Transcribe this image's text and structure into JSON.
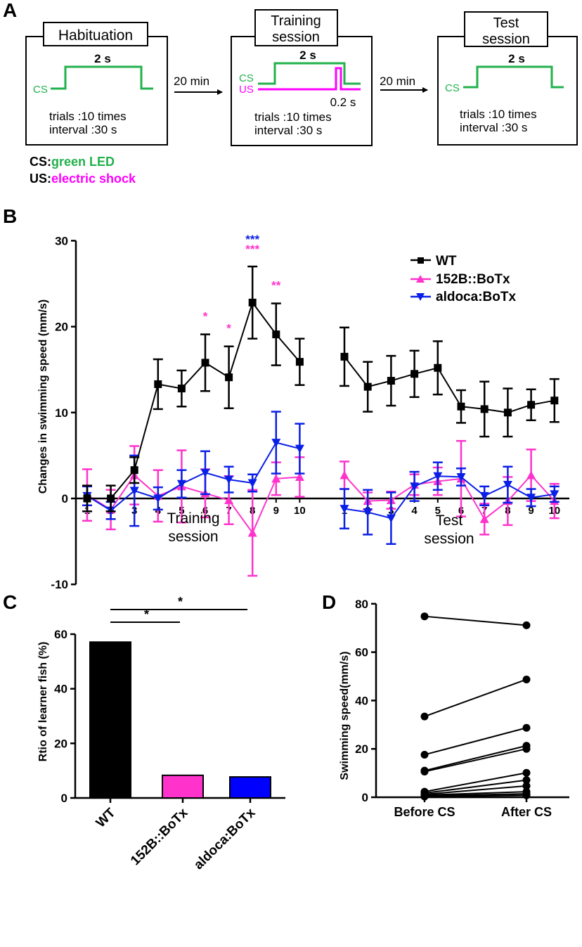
{
  "colors": {
    "wt": "#000000",
    "b152": "#ff33cc",
    "aldoca": "#0a1fe6",
    "green": "#22b14c",
    "magenta": "#ff00ff",
    "bar_wt": "#000000",
    "bar_152": "#ff33cc",
    "bar_aldoca": "#0000ff"
  },
  "panel_a": {
    "label": "A",
    "boxes": [
      {
        "title": "Habituation",
        "wave_top": "2 s",
        "cs": "CS",
        "trials": "trials :10 times",
        "interval": "interval :30 s"
      },
      {
        "title_line1": "Training",
        "title_line2": "session",
        "wave_top": "2 s",
        "cs": "CS",
        "us": "US",
        "us_dur": "0.2 s",
        "trials": "trials :10 times",
        "interval": "interval :30 s"
      },
      {
        "title_line1": "Test",
        "title_line2": "session",
        "wave_top": "2 s",
        "cs": "CS",
        "trials": "trials :10 times",
        "interval": "interval :30 s"
      }
    ],
    "arrows": [
      "20 min",
      "20 min"
    ],
    "legend": {
      "cs_key": "CS:",
      "cs_val": "green LED",
      "us_key": "US:",
      "us_val": "electric shock"
    }
  },
  "chart_data": [
    {
      "panel": "B",
      "type": "line",
      "ylabel": "Changes in swimming speed (mm/s)",
      "ylim": [
        -10,
        30
      ],
      "yticks": [
        "-10",
        "0",
        "10",
        "20",
        "30"
      ],
      "session_labels": [
        [
          "Training",
          "session"
        ],
        [
          "Test",
          "session"
        ]
      ],
      "x_tick_labels": [
        "1",
        "2",
        "3",
        "4",
        "5",
        "6",
        "7",
        "8",
        "9",
        "10"
      ],
      "legend_position": "top-right",
      "series": [
        {
          "name": "WT",
          "marker": "square",
          "training": [
            0,
            0,
            3.3,
            13.3,
            12.8,
            15.8,
            14.1,
            22.8,
            19.1,
            15.9
          ],
          "training_err": [
            1.5,
            1.5,
            1.5,
            2.9,
            2.1,
            3.3,
            3.6,
            4.2,
            3.6,
            2.7
          ],
          "test": [
            16.5,
            13.0,
            13.7,
            14.5,
            15.2,
            10.7,
            10.4,
            10.0,
            10.9,
            11.4
          ],
          "test_err": [
            3.4,
            2.9,
            2.9,
            2.7,
            3.1,
            1.9,
            3.2,
            2.8,
            1.8,
            2.5
          ]
        },
        {
          "name": "152B::BoTx",
          "marker": "triangle-up",
          "training": [
            0.4,
            -1.3,
            2.7,
            0.3,
            1.4,
            0.6,
            -0.2,
            -4.0,
            2.3,
            2.5
          ],
          "training_err": [
            3.0,
            2.3,
            3.4,
            3.0,
            4.2,
            2.8,
            2.8,
            5.0,
            1.9,
            2.3
          ],
          "test": [
            2.7,
            -0.3,
            -0.2,
            1.6,
            2.0,
            2.3,
            -2.4,
            -0.3,
            2.7,
            -0.3
          ],
          "test_err": [
            1.6,
            1.0,
            1.0,
            1.2,
            1.6,
            4.4,
            1.8,
            2.8,
            3.0,
            2.0
          ]
        },
        {
          "name": "aldoca:BoTx",
          "marker": "triangle-down",
          "training": [
            0.3,
            -1.4,
            0.9,
            0.0,
            1.7,
            3.0,
            2.2,
            1.8,
            6.5,
            5.8
          ],
          "training_err": [
            1.1,
            1.0,
            4.1,
            1.3,
            1.6,
            2.5,
            1.5,
            1.0,
            3.6,
            2.9
          ],
          "test": [
            -1.2,
            -1.6,
            -2.3,
            1.4,
            2.6,
            2.5,
            0.3,
            1.6,
            0.1,
            0.5
          ],
          "test_err": [
            2.3,
            2.6,
            3.0,
            1.7,
            1.6,
            1.0,
            1.1,
            2.1,
            1.0,
            0.9
          ]
        }
      ],
      "annotations": [
        {
          "x_index": 6,
          "text": "*",
          "color": "#ff33cc"
        },
        {
          "x_index": 7,
          "text": "*",
          "color": "#ff33cc"
        },
        {
          "x_index": 8,
          "text": "***",
          "color": "#0a1fe6"
        },
        {
          "x_index": 8,
          "text": "***",
          "color": "#ff33cc"
        },
        {
          "x_index": 9,
          "text": "**",
          "color": "#ff33cc"
        }
      ]
    },
    {
      "panel": "C",
      "type": "bar",
      "ylabel": "Rtio of learner fish (%)",
      "ylim": [
        0,
        60
      ],
      "yticks": [
        "0",
        "20",
        "40",
        "60"
      ],
      "categories": [
        "WT",
        "152B::BoTx",
        "aldoca:BoTx"
      ],
      "values": [
        57.1,
        8.3,
        7.7
      ],
      "significance": [
        {
          "from": 0,
          "to": 1,
          "text": "*"
        },
        {
          "from": 0,
          "to": 2,
          "text": "*"
        }
      ]
    },
    {
      "panel": "D",
      "type": "line",
      "ylabel": "Swimming speed(mm/s)",
      "ylim": [
        0,
        80
      ],
      "yticks": [
        "0",
        "20",
        "40",
        "60",
        "80"
      ],
      "categories": [
        "Before CS",
        "After CS"
      ],
      "pairs": [
        [
          74.8,
          71.1
        ],
        [
          33.4,
          48.7
        ],
        [
          17.6,
          28.7
        ],
        [
          11.0,
          21.3
        ],
        [
          10.6,
          20.0
        ],
        [
          2.3,
          10.1
        ],
        [
          1.7,
          7.1
        ],
        [
          1.2,
          4.7
        ],
        [
          0.9,
          2.3
        ],
        [
          0.6,
          1.4
        ],
        [
          0.3,
          0.8
        ]
      ]
    }
  ]
}
